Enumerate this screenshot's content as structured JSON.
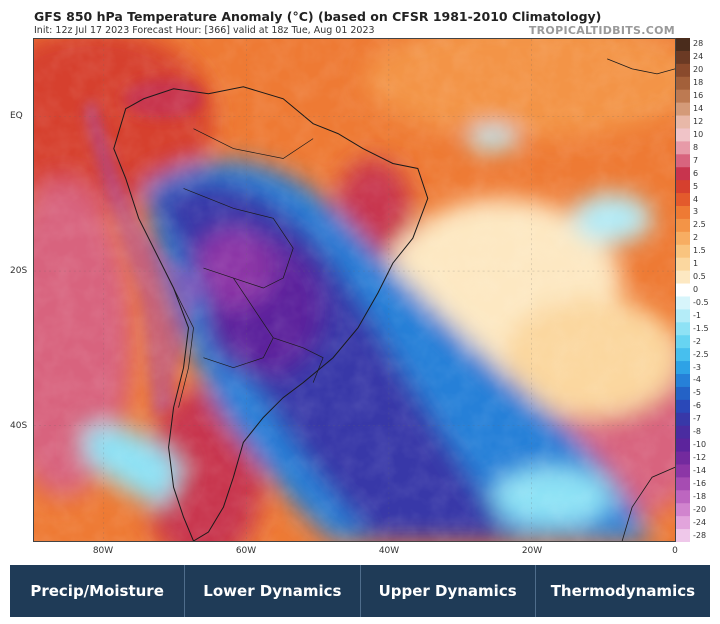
{
  "header": {
    "title": "GFS 850 hPa Temperature Anomaly (°C) (based on CFSR 1981-2010 Climatology)",
    "subtitle": "Init: 12z Jul 17 2023   Forecast Hour: [366]  valid at 18z Tue, Aug 01 2023",
    "brand": "TROPICALTIDBITS.COM"
  },
  "map": {
    "lat_labels": [
      "EQ",
      "20S",
      "40S"
    ],
    "lon_labels": [
      "80W",
      "60W",
      "40W",
      "20W",
      "0"
    ]
  },
  "colorbar": {
    "labels": [
      "28",
      "24",
      "20",
      "18",
      "16",
      "14",
      "12",
      "10",
      "8",
      "7",
      "6",
      "5",
      "4",
      "3",
      "2.5",
      "2",
      "1.5",
      "1",
      "0.5",
      "0",
      "-0.5",
      "-1",
      "-1.5",
      "-2",
      "-2.5",
      "-3",
      "-4",
      "-5",
      "-6",
      "-7",
      "-8",
      "-10",
      "-12",
      "-14",
      "-16",
      "-18",
      "-20",
      "-24",
      "-28"
    ],
    "colors": [
      "#4a2c1c",
      "#6b3a24",
      "#8a4a2c",
      "#a3603a",
      "#bd7a52",
      "#d49a78",
      "#e8b8a8",
      "#f0c4c8",
      "#e79aa8",
      "#d8647e",
      "#c8344e",
      "#d6402e",
      "#e35a2c",
      "#ee7a34",
      "#f39447",
      "#f7ad62",
      "#f9c47f",
      "#fbd79f",
      "#fde8c2",
      "#ffffff",
      "#d7f5fb",
      "#b4ecf8",
      "#8ee2f5",
      "#67d4f2",
      "#47bfee",
      "#2ea2e6",
      "#2680d8",
      "#2462c6",
      "#2a48b8",
      "#3838a8",
      "#4a2ca0",
      "#5c249c",
      "#732a9e",
      "#8c36a6",
      "#a64cb2",
      "#bd66c0",
      "#d184ce",
      "#e2a4dc",
      "#efc8ea"
    ]
  },
  "nav": {
    "items": [
      "Precip/Moisture",
      "Lower Dynamics",
      "Upper Dynamics",
      "Thermodynamics"
    ]
  }
}
